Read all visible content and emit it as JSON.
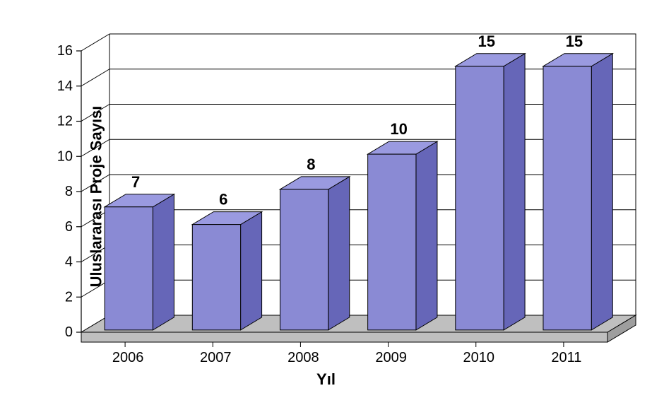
{
  "chart": {
    "type": "bar-3d",
    "categories": [
      "2006",
      "2007",
      "2008",
      "2009",
      "2010",
      "2011"
    ],
    "values": [
      7,
      6,
      8,
      10,
      15,
      15
    ],
    "value_labels": [
      "7",
      "6",
      "8",
      "10",
      "15",
      "15"
    ],
    "ylabel": "Uluslararası  Proje Sayısı",
    "xlabel": "Yıl",
    "ylim": [
      0,
      16
    ],
    "ytick_step": 2,
    "yticks": [
      "0",
      "2",
      "4",
      "6",
      "8",
      "10",
      "12",
      "14",
      "16"
    ],
    "bar_front_color": "#8a8ad4",
    "bar_top_color": "#9a9ae0",
    "bar_side_color": "#6666b8",
    "bar_stroke": "#000000",
    "floor_color": "#bfbfbf",
    "floor_side_color": "#9e9e9e",
    "wall_color": "#ffffff",
    "grid_color": "#000000",
    "axis_color": "#000000",
    "tick_font_size": 20,
    "value_font_size": 22,
    "label_font_size": 22,
    "text_color": "#000000",
    "bar_width_ratio": 0.55,
    "depth_x": 40,
    "depth_y": 24
  }
}
